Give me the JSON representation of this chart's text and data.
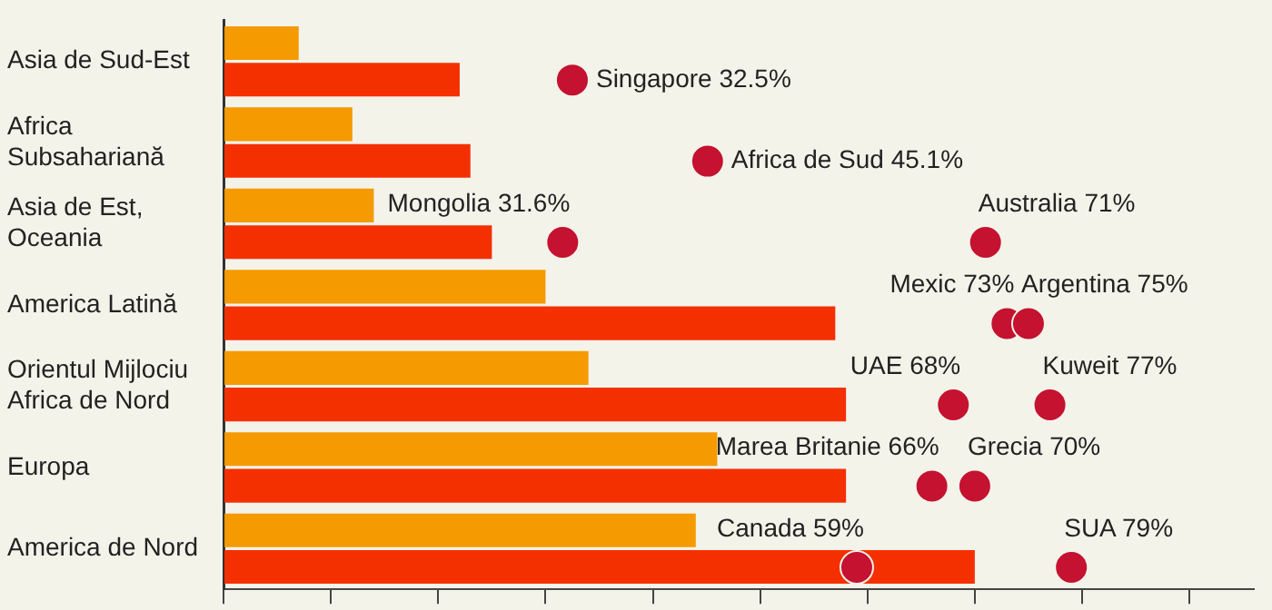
{
  "chart_data": {
    "type": "bar",
    "orientation": "horizontal",
    "categories": [
      "Asia de Sud-Est",
      "Africa Subsahariană",
      "Asia de Est, Oceania",
      "America Latină",
      "Orientul Mijlociu Africa de Nord",
      "Europa",
      "America de Nord"
    ],
    "series": [
      {
        "color": "#f59a00",
        "values": [
          7,
          12,
          14,
          30,
          34,
          46,
          44
        ]
      },
      {
        "color": "#f53000",
        "values": [
          22,
          23,
          25,
          57,
          58,
          58,
          70
        ]
      },
      {
        "type": "scatter",
        "color": "#c41230",
        "x": [
          "Asia de Sud-Est",
          "Africa Subsahariană",
          "Asia de Est, Oceania",
          "Asia de Est, Oceania",
          "America Latină",
          "America Latină",
          "Orientul Mijlociu Africa de Nord",
          "Orientul Mijlociu Africa de Nord",
          "Europa",
          "Europa",
          "America de Nord",
          "America de Nord"
        ],
        "values": [
          32.5,
          45.1,
          31.6,
          71,
          73,
          75,
          68,
          77,
          66,
          70,
          59,
          79
        ],
        "value_labels": [
          "Singapore 32.5%",
          "Africa de Sud 45.1%",
          "Mongolia 31.6%",
          "Australia 71%",
          "Mexic 73%",
          "Argentina 75%",
          "UAE 68%",
          "Kuweit 77%",
          "Marea Britanie 66%",
          "Grecia 70%",
          "Canada 59%",
          "SUA 79%"
        ]
      }
    ],
    "xlim": [
      0,
      96
    ],
    "xticks": [
      {
        "value": 0,
        "label": null
      },
      {
        "value": 10,
        "label": null
      },
      {
        "value": 20,
        "label": null
      },
      {
        "value": 30,
        "label": null
      },
      {
        "value": 40,
        "label": null
      },
      {
        "value": 50,
        "label": null
      },
      {
        "value": 60,
        "label": null
      },
      {
        "value": 70,
        "label": null
      },
      {
        "value": 80,
        "label": null
      },
      {
        "value": 90,
        "label": null
      }
    ],
    "tick_labels": "y",
    "legend": false,
    "marker": "circle"
  }
}
